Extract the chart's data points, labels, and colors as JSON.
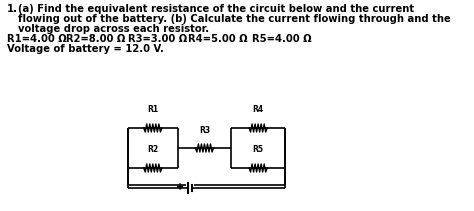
{
  "title_line1": "1.   (a) Find the equivalent resistance of the circuit below and the current",
  "title_line2": "     flowing out of the battery. (b) Calculate the current flowing through and the",
  "title_line3": "     voltage drop across each resistor.",
  "params_line": "R1=4.00 Ω     R2=8.00 Ω      R3=3.00 Ω      R4=5.00 Ω      R5=4.00 Ω",
  "battery_line": "Voltage of battery = 12.0 V.",
  "bg_color": "#ffffff",
  "text_color": "#000000",
  "circuit_color": "#000000"
}
